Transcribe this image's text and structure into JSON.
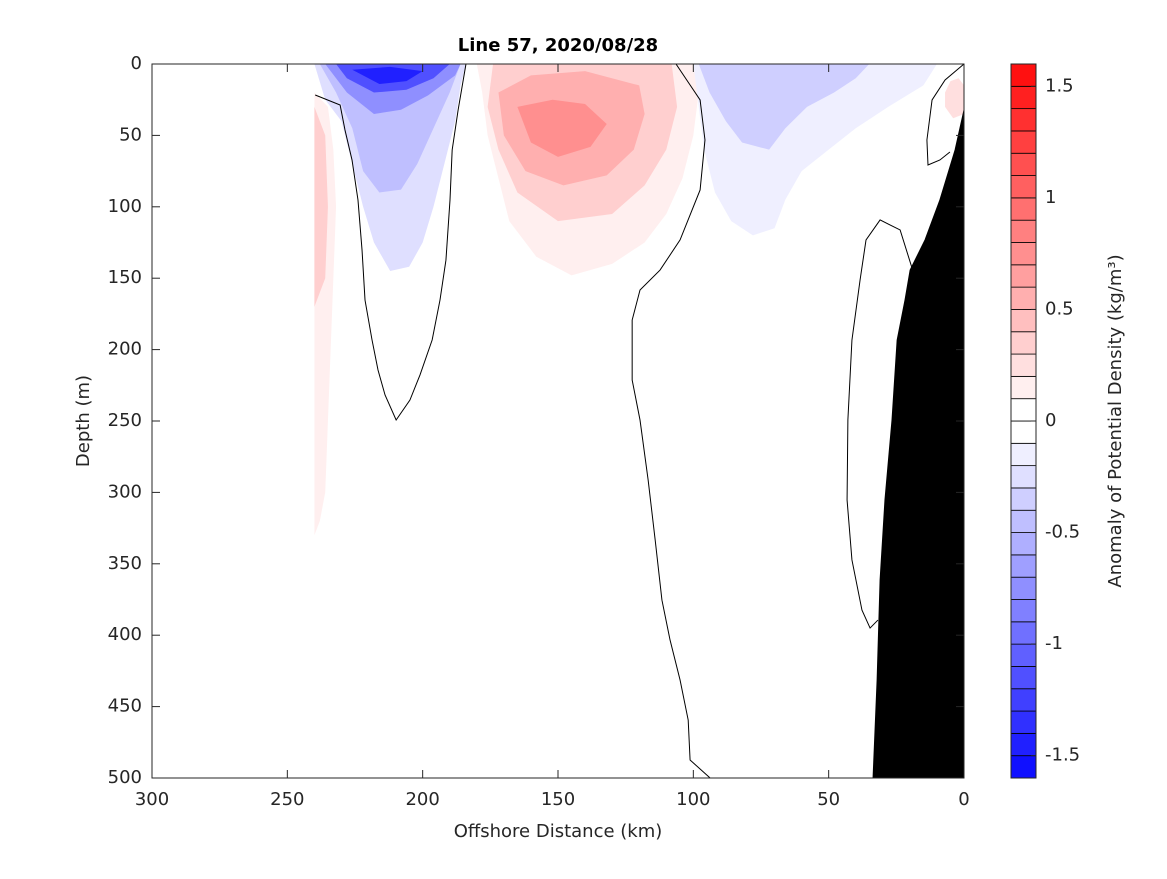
{
  "chart_data": {
    "type": "contour",
    "title": "Line 57, 2020/08/28",
    "xlabel": "Offshore Distance (km)",
    "ylabel": "Depth (m)",
    "xlim": [
      0,
      300
    ],
    "xdir": "reverse",
    "ylim": [
      0,
      500
    ],
    "ydir": "reverse",
    "xticks": [
      300,
      250,
      200,
      150,
      100,
      50,
      0
    ],
    "yticks": [
      0,
      50,
      100,
      150,
      200,
      250,
      300,
      350,
      400,
      450,
      500
    ],
    "colorbar": {
      "label": "Anomaly of Potential Density (kg/m³)",
      "clim": [
        -1.6,
        1.6
      ],
      "ticks": [
        -1.5,
        -1,
        -0.5,
        0,
        0.5,
        1,
        1.5
      ],
      "colormap": [
        "#0000ff",
        "#ffffff",
        "#ff0000"
      ],
      "levels": [
        -1.6,
        -1.5,
        -1.4,
        -1.3,
        -1.2,
        -1.1,
        -1,
        -0.9,
        -0.8,
        -0.7,
        -0.6,
        -0.5,
        -0.4,
        -0.3,
        -0.2,
        -0.1,
        0,
        0.1,
        0.2,
        0.3,
        0.4,
        0.5,
        0.6,
        0.7,
        0.8,
        0.9,
        1,
        1.1,
        1.2,
        1.3,
        1.4,
        1.5,
        1.6
      ]
    },
    "regions": [
      {
        "level": -0.2,
        "x": [
          240,
          236,
          230,
          226,
          222,
          218,
          212,
          205,
          200,
          196,
          192,
          188,
          186,
          184
        ],
        "y": [
          0,
          25,
          40,
          70,
          100,
          125,
          145,
          142,
          125,
          100,
          70,
          40,
          15,
          0
        ]
      },
      {
        "level": -0.4,
        "x": [
          238,
          232,
          226,
          222,
          216,
          208,
          202,
          196,
          190,
          186
        ],
        "y": [
          0,
          20,
          45,
          75,
          90,
          88,
          70,
          45,
          20,
          0
        ]
      },
      {
        "level": -0.7,
        "x": [
          236,
          228,
          218,
          208,
          198,
          188,
          186
        ],
        "y": [
          0,
          20,
          35,
          32,
          22,
          8,
          0
        ]
      },
      {
        "level": -1.1,
        "x": [
          232,
          228,
          218,
          206,
          196,
          190
        ],
        "y": [
          0,
          10,
          20,
          18,
          10,
          0
        ]
      },
      {
        "level": -1.4,
        "x": [
          226,
          216,
          206,
          200,
          212
        ],
        "y": [
          4,
          14,
          12,
          5,
          2
        ]
      },
      {
        "level": 0.1,
        "x": [
          240,
          235,
          233,
          232,
          233,
          234,
          235,
          236,
          238,
          240
        ],
        "y": [
          20,
          30,
          60,
          100,
          150,
          200,
          250,
          300,
          320,
          330
        ]
      },
      {
        "level": 0.3,
        "x": [
          240,
          236,
          235,
          236,
          240
        ],
        "y": [
          30,
          50,
          100,
          150,
          170
        ]
      },
      {
        "level": 0.1,
        "x": [
          180,
          178,
          176,
          172,
          168,
          158,
          145,
          130,
          118,
          110,
          104,
          100,
          98,
          100
        ],
        "y": [
          0,
          20,
          50,
          80,
          110,
          135,
          148,
          140,
          125,
          105,
          80,
          50,
          20,
          0
        ]
      },
      {
        "level": 0.3,
        "x": [
          174,
          176,
          172,
          165,
          150,
          130,
          118,
          110,
          106,
          108
        ],
        "y": [
          0,
          30,
          60,
          90,
          110,
          105,
          85,
          60,
          30,
          0
        ]
      },
      {
        "level": 0.5,
        "x": [
          172,
          170,
          162,
          148,
          132,
          122,
          118,
          120,
          140,
          160
        ],
        "y": [
          20,
          50,
          75,
          85,
          78,
          60,
          35,
          15,
          5,
          8
        ]
      },
      {
        "level": 0.7,
        "x": [
          165,
          160,
          150,
          138,
          132,
          140,
          152
        ],
        "y": [
          30,
          55,
          65,
          58,
          42,
          28,
          25
        ]
      },
      {
        "level": -0.1,
        "x": [
          100,
          98,
          96,
          92,
          86,
          78,
          70,
          66,
          60,
          50,
          40,
          28,
          15,
          10
        ],
        "y": [
          0,
          30,
          60,
          90,
          110,
          120,
          115,
          95,
          75,
          60,
          45,
          30,
          15,
          0
        ]
      },
      {
        "level": -0.3,
        "x": [
          98,
          94,
          88,
          82,
          72,
          66,
          58,
          48,
          40,
          35
        ],
        "y": [
          0,
          20,
          40,
          55,
          60,
          45,
          30,
          20,
          10,
          0
        ]
      },
      {
        "level": 0.2,
        "x": [
          7,
          5,
          2,
          0,
          0,
          4,
          7
        ],
        "y": [
          20,
          12,
          10,
          15,
          35,
          38,
          30
        ]
      }
    ],
    "contour_lines": [
      {
        "x": [
          239.7,
          230.5,
          228.7,
          226.1,
          223.9,
          222.4,
          221.3,
          218.7,
          216.5,
          213.9,
          209.8,
          204.7,
          201,
          196.5,
          193.6,
          191.4,
          189.9,
          189.1,
          186.9,
          184
        ],
        "y": [
          21.7,
          28.7,
          46.2,
          67.2,
          95.2,
          130.3,
          165.3,
          193.3,
          214.3,
          231.8,
          249.3,
          235.3,
          217.8,
          193.3,
          165.3,
          137.3,
          95.2,
          60.2,
          32.2,
          0
        ]
      },
      {
        "x": [
          106.4,
          101.2,
          97.5,
          95.7,
          97.5,
          104.9,
          112.3,
          119.7,
          122.6,
          122.6,
          119.7,
          116.7,
          114.1,
          111.6,
          108.6,
          104.9,
          101.9,
          101.2,
          93.8
        ],
        "y": [
          0,
          14.7,
          25.2,
          53.2,
          88.2,
          123.2,
          144.3,
          158.3,
          179.3,
          221.3,
          249.3,
          291.3,
          333.3,
          375.4,
          403.4,
          431.4,
          459.4,
          487.4,
          500
        ]
      },
      {
        "x": [
          19.2,
          23.6,
          31,
          36.2,
          38.4,
          41.4,
          42.9,
          43.2,
          41.4,
          37.7,
          34.7,
          31.8
        ],
        "y": [
          142.9,
          116.2,
          109.2,
          123.2,
          151.3,
          193.3,
          249.3,
          305.3,
          347.3,
          382.4,
          395,
          389.4
        ]
      },
      {
        "x": [
          0,
          7,
          11.8,
          13.7,
          13.3,
          8.9,
          5.2
        ],
        "y": [
          0,
          11.2,
          25.2,
          53.2,
          70.7,
          67.2,
          61.6
        ]
      }
    ],
    "bathymetry": {
      "color": "#000000",
      "x": [
        0,
        3.3,
        8.9,
        14.4,
        19.9,
        21.8,
        24.7,
        26.6,
        29.2,
        31,
        32.1,
        33.6,
        0
      ],
      "y": [
        32.2,
        60.2,
        95.2,
        123.2,
        144.3,
        165.3,
        193.3,
        249.3,
        305.3,
        361.3,
        431.4,
        500,
        500
      ]
    }
  }
}
